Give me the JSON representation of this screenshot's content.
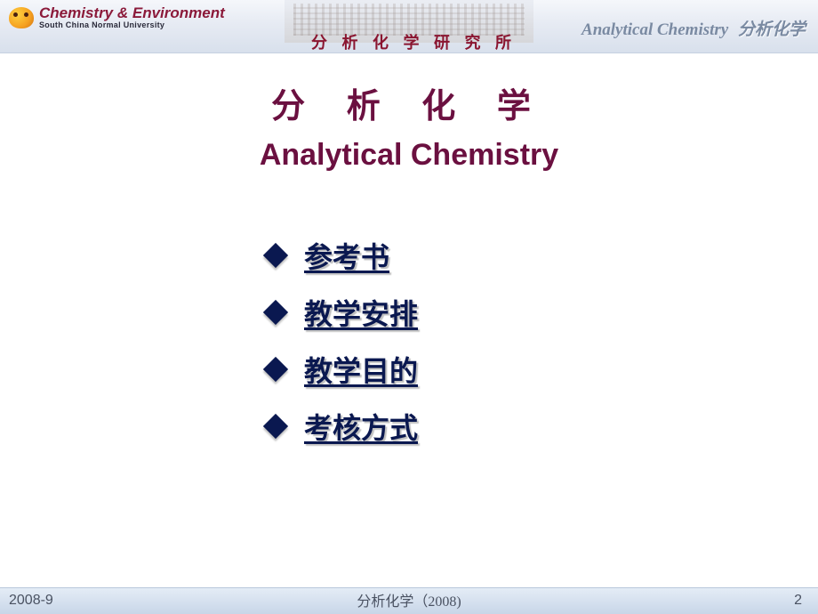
{
  "header": {
    "logo_main": "Chemistry & Environment",
    "logo_sub": "South China Normal University",
    "institute": "分 析 化 学 研 究 所",
    "right_en": "Analytical Chemistry",
    "right_cn": "分析化学"
  },
  "title": {
    "cn": "分 析 化 学",
    "en": "Analytical Chemistry"
  },
  "menu": {
    "items": [
      {
        "label": "参考书"
      },
      {
        "label": " 教学安排"
      },
      {
        "label": " 教学目的"
      },
      {
        "label": " 考核方式"
      }
    ]
  },
  "footer": {
    "date": "2008-9",
    "center": "分析化学（2008)",
    "page": "2"
  },
  "colors": {
    "title_color": "#6b1040",
    "menu_color": "#0a1850",
    "header_text": "#7a8aa2",
    "logo_red": "#8b1a3a",
    "background": "#ffffff",
    "footer_bg_top": "#e4ecf6",
    "footer_bg_bottom": "#c8d6e8"
  },
  "typography": {
    "title_cn_fontsize": 38,
    "title_en_fontsize": 34,
    "menu_fontsize": 32,
    "header_right_fontsize": 19,
    "footer_fontsize": 16
  }
}
